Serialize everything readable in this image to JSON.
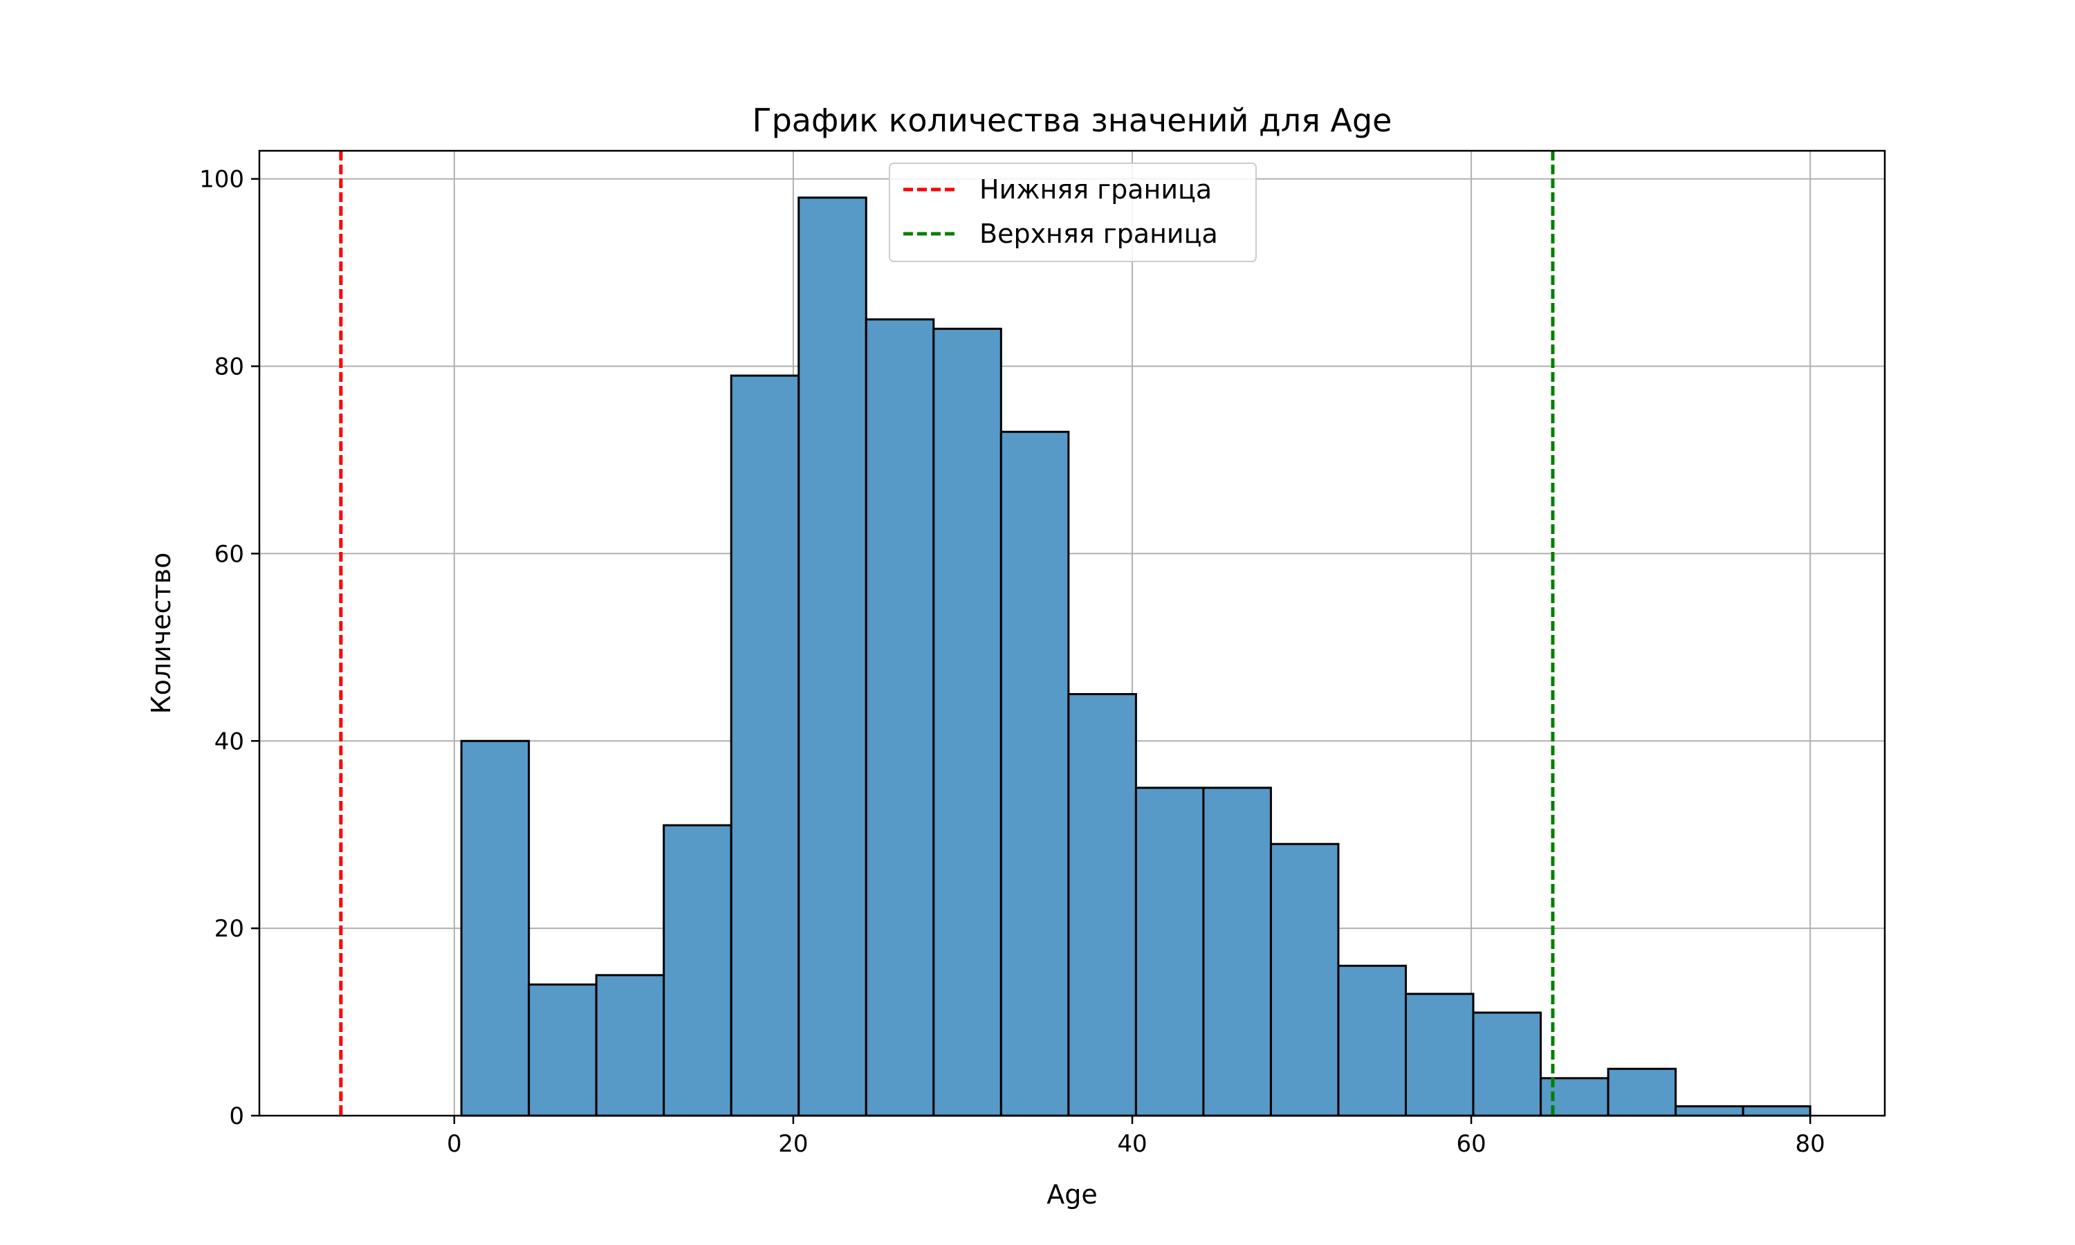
{
  "chart_data": {
    "type": "bar",
    "title": "График количества значений для Age",
    "xlabel": "Age",
    "ylabel": "Количество",
    "xlim": [
      -11.5,
      84.4
    ],
    "ylim": [
      0,
      103
    ],
    "grid": true,
    "bin_edges": [
      0.42,
      4.4,
      8.38,
      12.36,
      16.34,
      20.32,
      24.3,
      28.28,
      32.26,
      36.24,
      40.22,
      44.2,
      48.18,
      52.16,
      56.14,
      60.12,
      64.1,
      68.08,
      72.06,
      76.04,
      80.0
    ],
    "values": [
      40,
      14,
      15,
      31,
      79,
      98,
      85,
      84,
      73,
      45,
      35,
      35,
      29,
      16,
      13,
      11,
      4,
      5,
      1,
      1
    ],
    "bar_color": "#5799c7",
    "edge_color": "#000000",
    "xticks": [
      0,
      20,
      40,
      60,
      80
    ],
    "xtick_labels": [
      "0",
      "20",
      "40",
      "60",
      "80"
    ],
    "yticks": [
      0,
      20,
      40,
      60,
      80,
      100
    ],
    "ytick_labels": [
      "0",
      "20",
      "40",
      "60",
      "80",
      "100"
    ],
    "lines": [
      {
        "name": "Нижняя граница",
        "x": -6.69,
        "color": "#ff0000",
        "style": "dashed"
      },
      {
        "name": "Верхняя граница",
        "x": 64.81,
        "color": "#008000",
        "style": "dashed"
      }
    ],
    "legend_position": "upper center"
  }
}
